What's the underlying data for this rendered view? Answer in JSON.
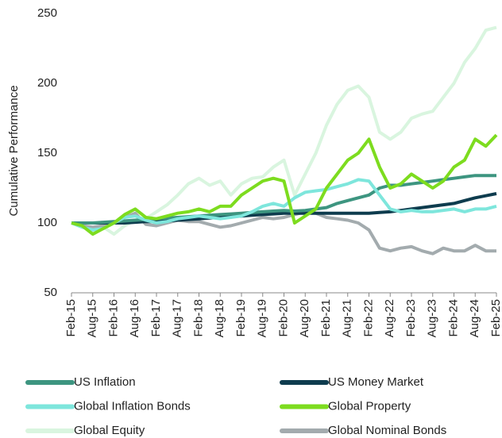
{
  "chart_data": {
    "type": "line",
    "y_label": "Cumulative Performance",
    "categories": [
      "Feb-15",
      null,
      "Aug-15",
      null,
      "Feb-16",
      null,
      "Aug-16",
      null,
      "Feb-17",
      null,
      "Aug-17",
      null,
      "Feb-18",
      null,
      "Aug-18",
      null,
      "Feb-19",
      null,
      "Aug-19",
      null,
      "Feb-20",
      null,
      "Aug-20",
      null,
      "Feb-21",
      null,
      "Aug-21",
      null,
      "Feb-22",
      null,
      "Aug-22",
      null,
      "Feb-23",
      null,
      "Aug-23",
      null,
      "Feb-24",
      null,
      "Aug-24",
      null,
      "Feb-25"
    ],
    "series": [
      {
        "name": "US Inflation",
        "color": "#3d9580",
        "values": [
          100,
          100,
          100,
          100.5,
          101,
          101.5,
          102,
          102.5,
          103,
          103.5,
          104,
          104.5,
          105,
          105.5,
          106,
          106.5,
          107,
          107.5,
          108,
          108.5,
          109,
          108.5,
          109,
          110,
          111,
          114,
          116,
          118,
          120,
          125,
          127,
          127,
          128,
          129,
          130,
          131,
          132,
          133,
          134,
          134,
          134
        ]
      },
      {
        "name": "US Money Market",
        "color": "#0e3c4e",
        "values": [
          100,
          100,
          100,
          100,
          100,
          100,
          100.5,
          101,
          101,
          101.5,
          102,
          102.5,
          103,
          103.5,
          104,
          104.5,
          105,
          105.5,
          106,
          106.5,
          107,
          107,
          107,
          107,
          107,
          107,
          107,
          107,
          107,
          107.5,
          108,
          109,
          110,
          111,
          112,
          113,
          114,
          116,
          118,
          119.5,
          121
        ]
      },
      {
        "name": "Global Inflation Bonds",
        "color": "#7ee6dc",
        "values": [
          100,
          97,
          95,
          96,
          100,
          104,
          105,
          102,
          100,
          101,
          103,
          104,
          105,
          104,
          103,
          104,
          105,
          108,
          112,
          114,
          112,
          118,
          122,
          123,
          124,
          126,
          128,
          131,
          130,
          120,
          110,
          108,
          109,
          108,
          108,
          109,
          110,
          108,
          110,
          110,
          112
        ]
      },
      {
        "name": "Global Property",
        "color": "#7ddc1f",
        "values": [
          100,
          98,
          92,
          96,
          100,
          106,
          110,
          104,
          103,
          105,
          107,
          108,
          110,
          108,
          112,
          112,
          120,
          125,
          130,
          132,
          130,
          100,
          105,
          110,
          125,
          135,
          145,
          150,
          160,
          140,
          125,
          128,
          135,
          130,
          125,
          130,
          140,
          145,
          160,
          155,
          163
        ]
      },
      {
        "name": "Global Equity",
        "color": "#d9f5df",
        "values": [
          100,
          100,
          93,
          97,
          92,
          98,
          102,
          103,
          108,
          113,
          120,
          128,
          132,
          127,
          130,
          120,
          128,
          132,
          133,
          140,
          145,
          120,
          135,
          150,
          170,
          185,
          195,
          198,
          190,
          165,
          160,
          165,
          175,
          178,
          180,
          190,
          200,
          215,
          225,
          238,
          240
        ]
      },
      {
        "name": "Global Nominal Bonds",
        "color": "#a3abae",
        "values": [
          100,
          98,
          97,
          98,
          100,
          104,
          107,
          99,
          98,
          100,
          102,
          101,
          101,
          99,
          97,
          98,
          100,
          102,
          104,
          103,
          104,
          106,
          108,
          107,
          104,
          103,
          102,
          100,
          95,
          82,
          80,
          82,
          83,
          80,
          78,
          82,
          80,
          80,
          84,
          80,
          80
        ]
      }
    ],
    "ylim": [
      50,
      250
    ],
    "yticks": [
      50,
      100,
      150,
      200,
      250
    ],
    "grid": false
  }
}
